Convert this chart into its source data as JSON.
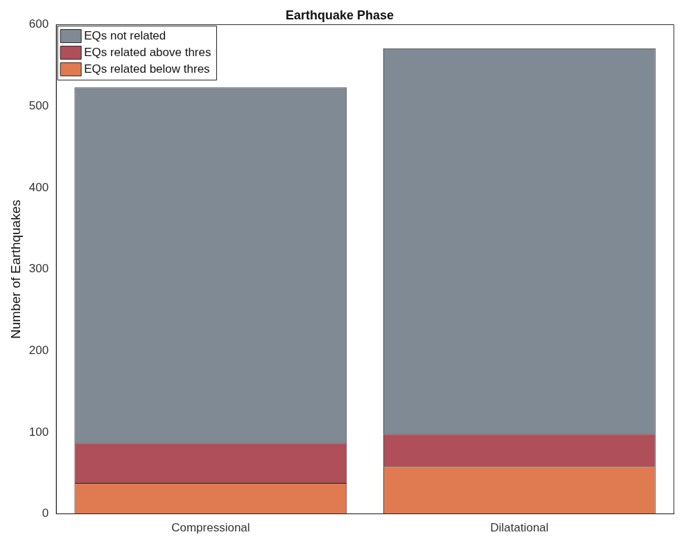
{
  "chart_data": {
    "type": "bar",
    "title": "Earthquake Phase",
    "ylabel": "Number of Earthquakes",
    "categories": [
      "Compressional",
      "Dilatational"
    ],
    "stacked": true,
    "series": [
      {
        "name": "EQs related below thres",
        "color": "#e07a50",
        "values": [
          38,
          58
        ]
      },
      {
        "name": "EQs related above thres",
        "color": "#ae4f59",
        "values": [
          49,
          40
        ]
      },
      {
        "name": "EQs not related",
        "color": "#808a94",
        "values": [
          436,
          473
        ]
      }
    ],
    "ylim": [
      0,
      600
    ],
    "yticks": [
      0,
      100,
      200,
      300,
      400,
      500,
      600
    ],
    "grid": false,
    "legend": "top left"
  }
}
